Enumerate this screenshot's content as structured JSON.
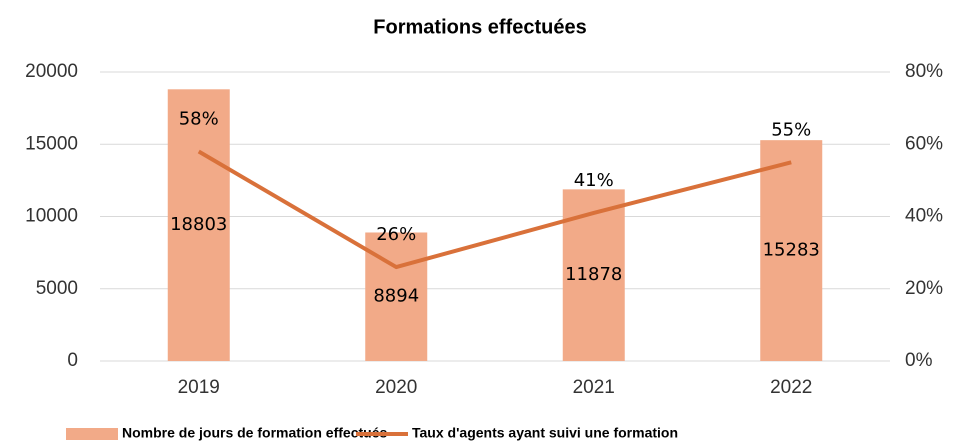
{
  "chart_data": {
    "type": "bar",
    "title": "Formations effectuées",
    "categories": [
      "2019",
      "2020",
      "2021",
      "2022"
    ],
    "series": [
      {
        "name": "Nombre de jours de formation effectués",
        "type": "bar",
        "color": "#f2aa88",
        "values": [
          18803,
          8894,
          11878,
          15283
        ]
      },
      {
        "name": "Taux d'agents ayant suivi une formation",
        "type": "line",
        "axis": "y2",
        "color": "#d9713a",
        "values": [
          58,
          26,
          41,
          55
        ],
        "value_labels": [
          "58%",
          "26%",
          "41%",
          "55%"
        ]
      }
    ],
    "ylim": [
      0,
      20000
    ],
    "yticks": [
      0,
      5000,
      10000,
      15000,
      20000
    ],
    "y2lim": [
      0,
      80
    ],
    "y2ticks": [
      {
        "value": 0,
        "label": "0%"
      },
      {
        "value": 20,
        "label": "20%"
      },
      {
        "value": 40,
        "label": "40%"
      },
      {
        "value": 60,
        "label": "60%"
      },
      {
        "value": 80,
        "label": "80%"
      }
    ],
    "grid": true,
    "legend": "bottom"
  }
}
